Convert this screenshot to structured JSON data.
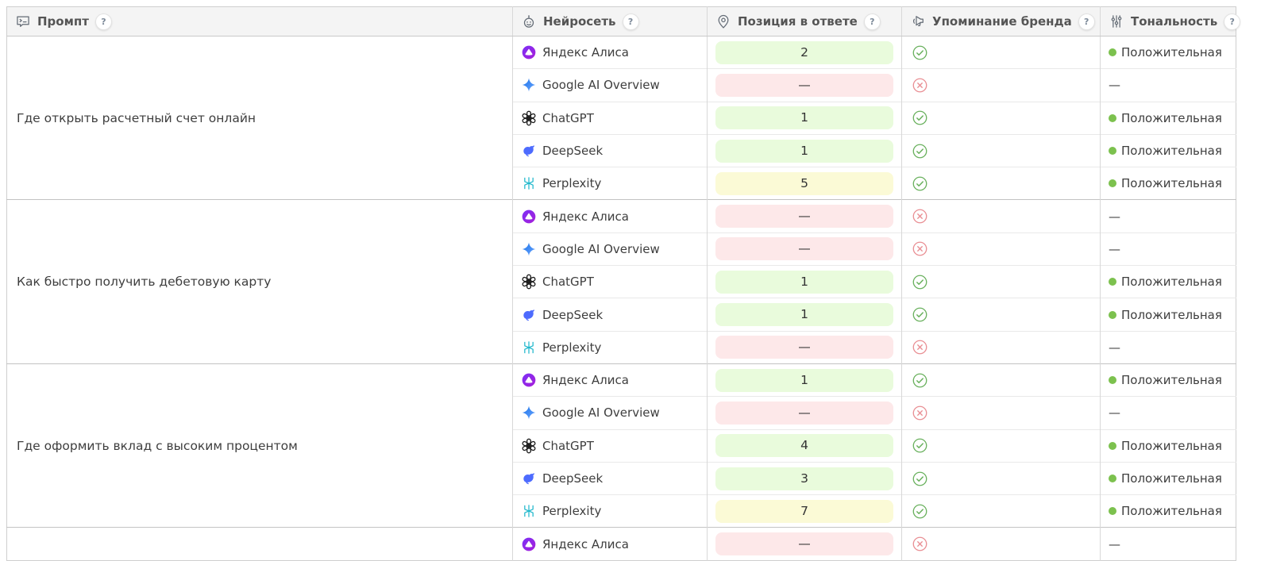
{
  "header": {
    "columns": [
      {
        "label": "Промпт",
        "icon": "prompt-icon",
        "help": "?"
      },
      {
        "label": "Нейросеть",
        "icon": "robot-icon",
        "help": "?"
      },
      {
        "label": "Позиция в ответе",
        "icon": "location-pin-icon",
        "help": "?"
      },
      {
        "label": "Упоминание бренда",
        "icon": "megaphone-icon",
        "help": "?"
      },
      {
        "label": "Тональность",
        "icon": "sliders-icon",
        "help": "?"
      }
    ]
  },
  "colors": {
    "badge_green_bg": "#e9fbdc",
    "badge_yellow_bg": "#fbfad6",
    "badge_red_bg": "#fde8e9",
    "check_green": "#6ab15e",
    "cross_red": "#e98f94",
    "tonality_dot_green": "#7cc14e",
    "yandex_purple": "#8f2fe0",
    "google_blue": "#4e8af9",
    "chatgpt_black": "#1c1c1c",
    "deepseek_blue": "#4d6bfe",
    "perplexity_teal": "#21b8cc",
    "header_bg": "#f4f4f4"
  },
  "groups": [
    {
      "prompt": "Где открыть расчетный счет онлайн",
      "rows": [
        {
          "model": "Яндекс Алиса",
          "icon": "yandex-alice-icon",
          "position": "2",
          "position_level": "green",
          "brand_mentioned": true,
          "tonality": "Положительная",
          "tonality_level": "positive"
        },
        {
          "model": "Google AI Overview",
          "icon": "google-ai-icon",
          "position": "—",
          "position_level": "red",
          "brand_mentioned": false,
          "tonality": "—",
          "tonality_level": "none"
        },
        {
          "model": "ChatGPT",
          "icon": "chatgpt-icon",
          "position": "1",
          "position_level": "green",
          "brand_mentioned": true,
          "tonality": "Положительная",
          "tonality_level": "positive"
        },
        {
          "model": "DeepSeek",
          "icon": "deepseek-icon",
          "position": "1",
          "position_level": "green",
          "brand_mentioned": true,
          "tonality": "Положительная",
          "tonality_level": "positive"
        },
        {
          "model": "Perplexity",
          "icon": "perplexity-icon",
          "position": "5",
          "position_level": "yellow",
          "brand_mentioned": true,
          "tonality": "Положительная",
          "tonality_level": "positive"
        }
      ]
    },
    {
      "prompt": "Как быстро получить дебетовую карту",
      "rows": [
        {
          "model": "Яндекс Алиса",
          "icon": "yandex-alice-icon",
          "position": "—",
          "position_level": "red",
          "brand_mentioned": false,
          "tonality": "—",
          "tonality_level": "none"
        },
        {
          "model": "Google AI Overview",
          "icon": "google-ai-icon",
          "position": "—",
          "position_level": "red",
          "brand_mentioned": false,
          "tonality": "—",
          "tonality_level": "none"
        },
        {
          "model": "ChatGPT",
          "icon": "chatgpt-icon",
          "position": "1",
          "position_level": "green",
          "brand_mentioned": true,
          "tonality": "Положительная",
          "tonality_level": "positive"
        },
        {
          "model": "DeepSeek",
          "icon": "deepseek-icon",
          "position": "1",
          "position_level": "green",
          "brand_mentioned": true,
          "tonality": "Положительная",
          "tonality_level": "positive"
        },
        {
          "model": "Perplexity",
          "icon": "perplexity-icon",
          "position": "—",
          "position_level": "red",
          "brand_mentioned": false,
          "tonality": "—",
          "tonality_level": "none"
        }
      ]
    },
    {
      "prompt": "Где оформить вклад с высоким процентом",
      "rows": [
        {
          "model": "Яндекс Алиса",
          "icon": "yandex-alice-icon",
          "position": "1",
          "position_level": "green",
          "brand_mentioned": true,
          "tonality": "Положительная",
          "tonality_level": "positive"
        },
        {
          "model": "Google AI Overview",
          "icon": "google-ai-icon",
          "position": "—",
          "position_level": "red",
          "brand_mentioned": false,
          "tonality": "—",
          "tonality_level": "none"
        },
        {
          "model": "ChatGPT",
          "icon": "chatgpt-icon",
          "position": "4",
          "position_level": "green",
          "brand_mentioned": true,
          "tonality": "Положительная",
          "tonality_level": "positive"
        },
        {
          "model": "DeepSeek",
          "icon": "deepseek-icon",
          "position": "3",
          "position_level": "green",
          "brand_mentioned": true,
          "tonality": "Положительная",
          "tonality_level": "positive"
        },
        {
          "model": "Perplexity",
          "icon": "perplexity-icon",
          "position": "7",
          "position_level": "yellow",
          "brand_mentioned": true,
          "tonality": "Положительная",
          "tonality_level": "positive"
        }
      ]
    },
    {
      "prompt": "",
      "rows": [
        {
          "model": "Яндекс Алиса",
          "icon": "yandex-alice-icon",
          "position": "—",
          "position_level": "red",
          "brand_mentioned": false,
          "tonality": "—",
          "tonality_level": "none"
        }
      ]
    }
  ]
}
